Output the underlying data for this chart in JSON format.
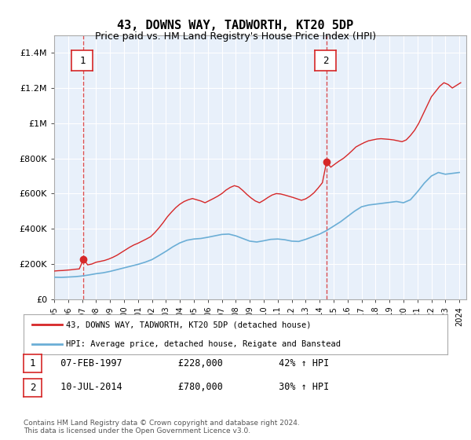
{
  "title": "43, DOWNS WAY, TADWORTH, KT20 5DP",
  "subtitle": "Price paid vs. HM Land Registry's House Price Index (HPI)",
  "bg_color": "#dce9f5",
  "plot_bg_color": "#e8f0fa",
  "legend_line1": "43, DOWNS WAY, TADWORTH, KT20 5DP (detached house)",
  "legend_line2": "HPI: Average price, detached house, Reigate and Banstead",
  "table_row1": [
    "1",
    "07-FEB-1997",
    "£228,000",
    "42% ↑ HPI"
  ],
  "table_row2": [
    "2",
    "10-JUL-2014",
    "£780,000",
    "30% ↑ HPI"
  ],
  "footer": "Contains HM Land Registry data © Crown copyright and database right 2024.\nThis data is licensed under the Open Government Licence v3.0.",
  "marker1_year": 1997.1,
  "marker2_year": 2014.5,
  "ylim": [
    0,
    1500000
  ],
  "yticks": [
    0,
    200000,
    400000,
    600000,
    800000,
    1000000,
    1200000,
    1400000
  ],
  "hpi_color": "#6baed6",
  "price_color": "#d62728",
  "marker_color": "#d62728",
  "dashed_color": "#d62728",
  "hpi_data": {
    "years": [
      1995,
      1995.5,
      1996,
      1996.5,
      1997,
      1997.5,
      1998,
      1998.5,
      1999,
      1999.5,
      2000,
      2000.5,
      2001,
      2001.5,
      2002,
      2002.5,
      2003,
      2003.5,
      2004,
      2004.5,
      2005,
      2005.5,
      2006,
      2006.5,
      2007,
      2007.5,
      2008,
      2008.5,
      2009,
      2009.5,
      2010,
      2010.5,
      2011,
      2011.5,
      2012,
      2012.5,
      2013,
      2013.5,
      2014,
      2014.5,
      2015,
      2015.5,
      2016,
      2016.5,
      2017,
      2017.5,
      2018,
      2018.5,
      2019,
      2019.5,
      2020,
      2020.5,
      2021,
      2021.5,
      2022,
      2022.5,
      2023,
      2023.5,
      2024
    ],
    "values": [
      125000,
      124000,
      126000,
      128000,
      132000,
      138000,
      145000,
      150000,
      158000,
      168000,
      178000,
      188000,
      198000,
      210000,
      225000,
      248000,
      272000,
      298000,
      320000,
      335000,
      342000,
      345000,
      352000,
      360000,
      368000,
      370000,
      360000,
      345000,
      330000,
      325000,
      332000,
      340000,
      342000,
      338000,
      330000,
      328000,
      340000,
      355000,
      370000,
      390000,
      415000,
      440000,
      470000,
      500000,
      525000,
      535000,
      540000,
      545000,
      550000,
      555000,
      548000,
      565000,
      610000,
      660000,
      700000,
      720000,
      710000,
      715000,
      720000
    ]
  },
  "price_data": {
    "years": [
      1995,
      1995.3,
      1995.6,
      1995.9,
      1996.2,
      1996.5,
      1996.8,
      1997.1,
      1997.4,
      1997.7,
      1998.0,
      1998.3,
      1998.6,
      1998.9,
      1999.2,
      1999.5,
      1999.8,
      2000.1,
      2000.4,
      2000.7,
      2001.0,
      2001.3,
      2001.6,
      2001.9,
      2002.2,
      2002.5,
      2002.8,
      2003.1,
      2003.4,
      2003.7,
      2004.0,
      2004.3,
      2004.6,
      2004.9,
      2005.2,
      2005.5,
      2005.8,
      2006.1,
      2006.4,
      2006.7,
      2007.0,
      2007.3,
      2007.6,
      2007.9,
      2008.2,
      2008.5,
      2008.8,
      2009.1,
      2009.4,
      2009.7,
      2010.0,
      2010.3,
      2010.6,
      2010.9,
      2011.2,
      2011.5,
      2011.8,
      2012.1,
      2012.4,
      2012.7,
      2013.0,
      2013.3,
      2013.6,
      2013.9,
      2014.2,
      2014.5,
      2014.8,
      2015.1,
      2015.4,
      2015.7,
      2016.0,
      2016.3,
      2016.6,
      2016.9,
      2017.2,
      2017.5,
      2017.8,
      2018.1,
      2018.4,
      2018.7,
      2019.0,
      2019.3,
      2019.6,
      2019.9,
      2020.2,
      2020.5,
      2020.8,
      2021.1,
      2021.4,
      2021.7,
      2022.0,
      2022.3,
      2022.6,
      2022.9,
      2023.2,
      2023.5,
      2023.8,
      2024.1
    ],
    "values": [
      160000,
      162000,
      163000,
      165000,
      167000,
      170000,
      172000,
      228000,
      195000,
      200000,
      210000,
      215000,
      220000,
      228000,
      238000,
      250000,
      265000,
      280000,
      295000,
      308000,
      318000,
      330000,
      342000,
      355000,
      378000,
      405000,
      435000,
      468000,
      495000,
      520000,
      540000,
      555000,
      565000,
      572000,
      565000,
      558000,
      548000,
      560000,
      572000,
      585000,
      600000,
      620000,
      635000,
      645000,
      638000,
      618000,
      595000,
      575000,
      558000,
      548000,
      562000,
      578000,
      592000,
      600000,
      598000,
      592000,
      585000,
      578000,
      570000,
      562000,
      570000,
      585000,
      605000,
      632000,
      662000,
      780000,
      750000,
      768000,
      785000,
      800000,
      820000,
      842000,
      865000,
      878000,
      890000,
      900000,
      905000,
      910000,
      912000,
      910000,
      908000,
      905000,
      900000,
      895000,
      905000,
      930000,
      960000,
      1000000,
      1050000,
      1100000,
      1150000,
      1180000,
      1210000,
      1230000,
      1220000,
      1200000,
      1215000,
      1230000
    ]
  },
  "xtick_years": [
    1995,
    1996,
    1997,
    1998,
    1999,
    2000,
    2001,
    2002,
    2003,
    2004,
    2005,
    2006,
    2007,
    2008,
    2009,
    2010,
    2011,
    2012,
    2013,
    2014,
    2015,
    2016,
    2017,
    2018,
    2019,
    2020,
    2021,
    2022,
    2023,
    2024
  ]
}
